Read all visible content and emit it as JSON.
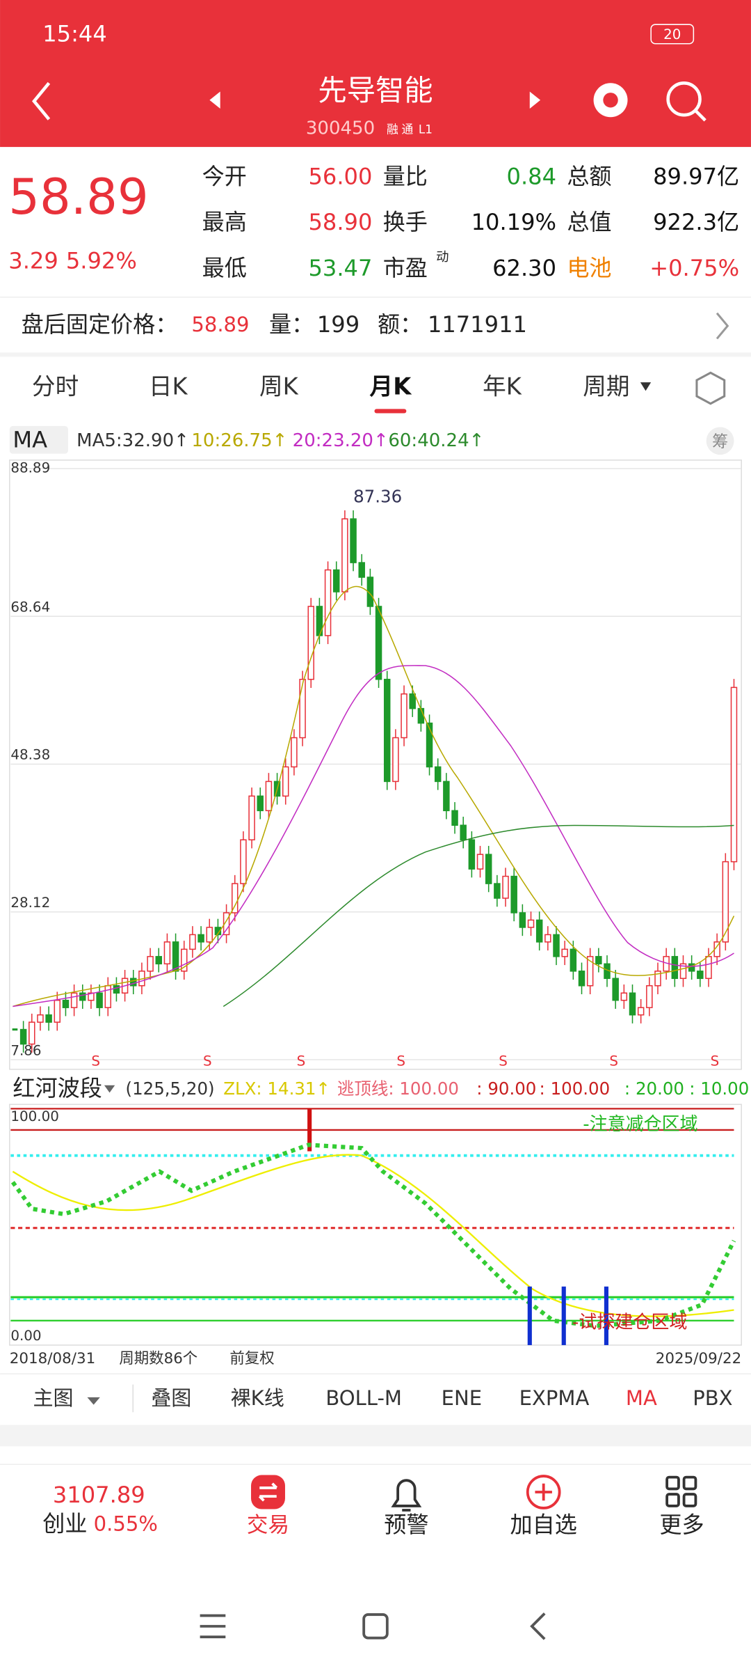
{
  "status": {
    "time": "15:44",
    "battery": "20"
  },
  "header": {
    "title": "先导智能",
    "code": "300450",
    "tags": [
      "融",
      "通",
      "L1"
    ]
  },
  "quote": {
    "price": "58.89",
    "change": "3.29",
    "pct": "5.92%",
    "rows": [
      [
        "今开",
        "56.00",
        "量比",
        "0.84",
        "总额",
        "89.97亿"
      ],
      [
        "最高",
        "58.90",
        "换手",
        "10.19%",
        "总值",
        "922.3亿"
      ],
      [
        "最低",
        "53.47",
        "市盈",
        "62.30",
        "电池",
        "+0.75%"
      ]
    ],
    "pe_mark": "动"
  },
  "after_hours": {
    "label": "盘后固定价格：",
    "price": "58.89",
    "vol_label": "量：",
    "vol": "199",
    "amt_label": "额：",
    "amt": "1171911"
  },
  "tabs": [
    "分时",
    "日K",
    "周K",
    "月K",
    "年K",
    "周期"
  ],
  "ma_bar": {
    "type": "MA",
    "items": [
      "MA5:32.90↑",
      "10:26.75↑",
      "20:23.20↑",
      "60:40.24↑"
    ],
    "chip": "筹"
  },
  "kline": {
    "price_ticks": [
      88.89,
      68.64,
      48.38,
      28.12,
      7.86
    ],
    "high_label": "87.36",
    "signal": "S",
    "signal_count": 7,
    "close": [
      12,
      10,
      13,
      14,
      13,
      16,
      15,
      17,
      16,
      17,
      15,
      18,
      17,
      19,
      18,
      20,
      22,
      21,
      24,
      20,
      23,
      25,
      24,
      26,
      25,
      28,
      32,
      38,
      44,
      42,
      46,
      44,
      48,
      52,
      60,
      70,
      66,
      75,
      72,
      82,
      76,
      74,
      70,
      60,
      46,
      52,
      58,
      56,
      54,
      48,
      46,
      42,
      40,
      38,
      34,
      36,
      32,
      30,
      33,
      28,
      26,
      27,
      24,
      25,
      22,
      23,
      20,
      18,
      22,
      21,
      19,
      16,
      17,
      14,
      15,
      18,
      20,
      22,
      19,
      21,
      20,
      19,
      22,
      24,
      35,
      58.89
    ]
  },
  "indicator": {
    "name": "红河波段",
    "params": "(125,5,20)",
    "zlx": "ZLX: 14.31↑",
    "lines": [
      "逃顶线: 100.00",
      ": 90.00",
      ": 100.00",
      ": 20.00",
      ": 10.00"
    ],
    "top": "100.00",
    "bottom": "0.00",
    "warn": "-注意减仓区域",
    "buy": "-试探建仓区域"
  },
  "footer_axis": {
    "start": "2018/08/31",
    "count": "周期数86个",
    "adjust": "前复权",
    "end": "2025/09/22"
  },
  "tools": [
    "主图",
    "叠图",
    "裸K线",
    "BOLL-M",
    "ENE",
    "EXPMA",
    "MA",
    "PBX"
  ],
  "nav": {
    "index_value": "3107.89",
    "index_name": "创业",
    "index_pct": "0.55%",
    "items": [
      "交易",
      "预警",
      "加自选",
      "更多"
    ]
  }
}
